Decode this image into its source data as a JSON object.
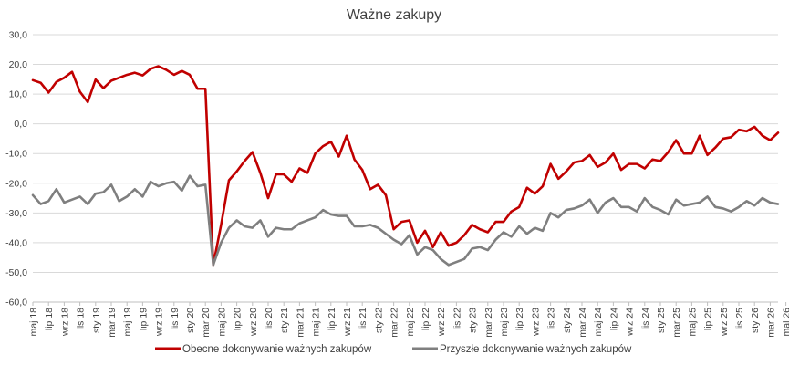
{
  "chart_data": {
    "type": "line",
    "title": "Ważne zakupy",
    "ylim": [
      -60,
      30
    ],
    "yticks": [
      "30,0",
      "20,0",
      "10,0",
      "0,0",
      "-10,0",
      "-20,0",
      "-30,0",
      "-40,0",
      "-50,0",
      "-60,0"
    ],
    "ytick_values": [
      30,
      20,
      10,
      0,
      -10,
      -20,
      -30,
      -40,
      -50,
      -60
    ],
    "grid": "horizontal",
    "legend_position": "bottom",
    "x_start": "2018-05",
    "x_labels": [
      "maj 18",
      "lip 18",
      "wrz 18",
      "lis 18",
      "sty 19",
      "mar 19",
      "maj 19",
      "lip 19",
      "wrz 19",
      "lis 19",
      "sty 20",
      "mar 20",
      "maj 20",
      "lip 20",
      "wrz 20",
      "lis 20",
      "sty 21",
      "mar 21",
      "maj 21",
      "lip 21",
      "wrz 21",
      "lis 21",
      "sty 22",
      "mar 22",
      "maj 22",
      "lip 22",
      "wrz 22",
      "lis 22",
      "sty 23",
      "mar 23",
      "maj 23",
      "lip 23",
      "wrz 23",
      "lis 23",
      "sty 24",
      "mar 24",
      "maj 24",
      "lip 24",
      "wrz 24",
      "lis 24",
      "sty 25",
      "mar 25",
      "maj 25",
      "lip 25",
      "wrz 25",
      "lis 25",
      "sty 26",
      "mar 26",
      "maj 26"
    ],
    "series": [
      {
        "name": "Obecne dokonywanie ważnych zakupów",
        "color": "#c00000",
        "values": [
          14.7,
          13.8,
          10.5,
          14.1,
          15.5,
          17.5,
          10.8,
          7.3,
          14.9,
          12.0,
          14.5,
          15.5,
          16.5,
          17.2,
          16.3,
          18.5,
          19.4,
          18.2,
          16.5,
          17.8,
          16.5,
          11.8,
          11.8,
          -47.5,
          -34.0,
          -19.0,
          -16.0,
          -12.5,
          -9.5,
          -16.5,
          -25.0,
          -17.0,
          -17.0,
          -19.5,
          -15.0,
          -16.5,
          -10.0,
          -7.5,
          -6.0,
          -11.0,
          -4.0,
          -12.0,
          -15.5,
          -22.0,
          -20.5,
          -24.0,
          -35.5,
          -33.0,
          -32.5,
          -40.0,
          -36.0,
          -41.5,
          -36.5,
          -41.0,
          -40.0,
          -37.5,
          -34.0,
          -35.5,
          -36.5,
          -33.0,
          -33.0,
          -29.5,
          -28.0,
          -21.5,
          -23.5,
          -21.0,
          -13.5,
          -18.5,
          -16.0,
          -13.0,
          -12.5,
          -10.5,
          -14.5,
          -13.0,
          -10.0,
          -15.5,
          -13.5,
          -13.5,
          -15.0,
          -12.0,
          -12.5,
          -9.5,
          -5.5,
          -10.0,
          -10.0,
          -4.0,
          -10.5,
          -8.0,
          -5.0,
          -4.5,
          -2.0,
          -2.5,
          -1.0,
          -4.0,
          -5.5,
          -3.0
        ]
      },
      {
        "name": "Przyszłe dokonywanie ważnych zakupów",
        "color": "#7f7f7f",
        "values": [
          -24.0,
          -27.0,
          -26.0,
          -22.0,
          -26.5,
          -25.5,
          -24.5,
          -27.0,
          -23.5,
          -23.0,
          -20.5,
          -26.0,
          -24.5,
          -22.0,
          -24.5,
          -19.5,
          -21.0,
          -20.0,
          -19.5,
          -22.5,
          -17.5,
          -21.0,
          -20.5,
          -47.5,
          -40.0,
          -35.0,
          -32.5,
          -34.5,
          -35.0,
          -32.5,
          -38.0,
          -35.0,
          -35.5,
          -35.5,
          -33.5,
          -32.5,
          -31.5,
          -29.0,
          -30.5,
          -31.0,
          -31.0,
          -34.5,
          -34.5,
          -34.0,
          -35.0,
          -37.0,
          -39.0,
          -40.5,
          -37.5,
          -44.0,
          -41.5,
          -42.5,
          -45.5,
          -47.5,
          -46.5,
          -45.5,
          -42.0,
          -41.5,
          -42.5,
          -39.0,
          -36.5,
          -38.0,
          -34.5,
          -37.0,
          -35.0,
          -36.0,
          -30.0,
          -31.5,
          -29.0,
          -28.5,
          -27.5,
          -25.5,
          -30.0,
          -26.5,
          -25.0,
          -28.0,
          -28.0,
          -29.5,
          -25.0,
          -28.0,
          -29.0,
          -30.5,
          -25.5,
          -27.5,
          -27.0,
          -26.5,
          -24.5,
          -28.0,
          -28.5,
          -29.5,
          -28.0,
          -26.0,
          -27.5,
          -25.0,
          -26.5,
          -27.0
        ]
      }
    ]
  }
}
